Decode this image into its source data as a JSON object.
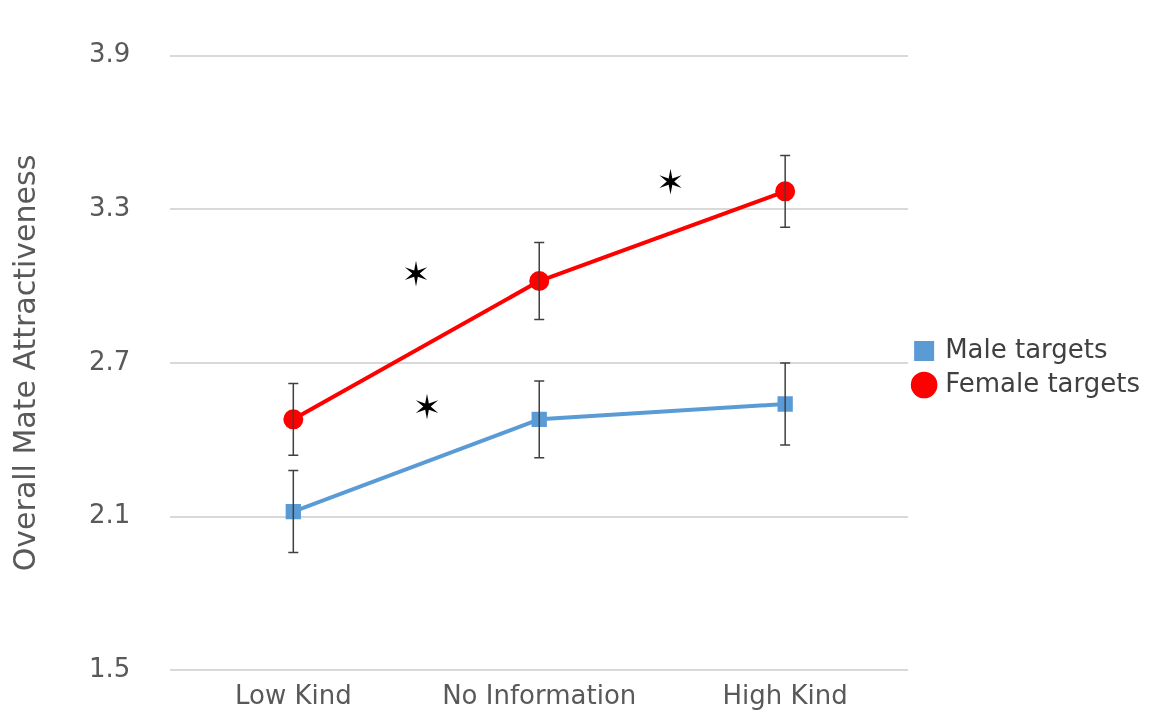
{
  "chart_data": {
    "type": "line",
    "ylabel": "Overall Mate Attractiveness",
    "categories": [
      "Low Kind",
      "No Information",
      "High Kind"
    ],
    "series": [
      {
        "name": "Male targets",
        "color": "#5b9bd5",
        "marker": "square",
        "values": [
          2.12,
          2.48,
          2.54
        ],
        "errors": [
          0.16,
          0.15,
          0.16
        ]
      },
      {
        "name": "Female targets",
        "color": "#ff0000",
        "marker": "circle",
        "values": [
          2.48,
          3.02,
          3.37
        ],
        "errors": [
          0.14,
          0.15,
          0.14
        ]
      }
    ],
    "ylim": [
      1.5,
      3.9
    ],
    "yticks": [
      1.5,
      2.1,
      2.7,
      3.3,
      3.9
    ],
    "grid": "y",
    "legend": "right",
    "annotations": [
      "✶",
      "✶",
      "✶"
    ]
  }
}
